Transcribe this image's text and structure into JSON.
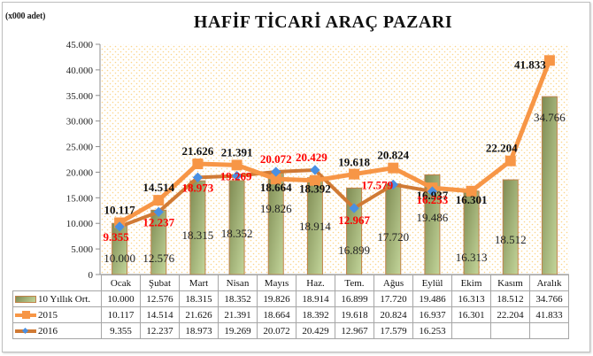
{
  "header": {
    "unit_label": "(x000 adet)",
    "title": "HAFİF TİCARİ ARAÇ PAZARI"
  },
  "colors": {
    "bar_dark": "#7f8b53",
    "bar_light": "#c3d69b",
    "bar_border": "#c0824a",
    "line_2015": "#f79646",
    "line_2016": "#d07a35",
    "marker_2016": "#4a90e2",
    "label_2016": "#ff0000",
    "plot_dots": "#fcd58a"
  },
  "table": {
    "headers": [
      "Ocak",
      "Şubat",
      "Mart",
      "Nisan",
      "Mayıs",
      "Haz.",
      "Tem.",
      "Ağus",
      "Eylül",
      "Ekim",
      "Kasım",
      "Aralık"
    ],
    "rows": [
      {
        "label": "10 Yıllık Ort.",
        "values": [
          "10.000",
          "12.576",
          "18.315",
          "18.352",
          "19.826",
          "18.914",
          "16.899",
          "17.720",
          "19.486",
          "16.313",
          "18.512",
          "34.766"
        ]
      },
      {
        "label": "2015",
        "values": [
          "10.117",
          "14.514",
          "21.626",
          "21.391",
          "18.664",
          "18.392",
          "19.618",
          "20.824",
          "16.937",
          "16.301",
          "22.204",
          "41.833"
        ]
      },
      {
        "label": "2016",
        "values": [
          "9.355",
          "12.237",
          "18.973",
          "19.269",
          "20.072",
          "20.429",
          "12.967",
          "17.579",
          "16.253",
          "",
          "",
          ""
        ]
      }
    ]
  },
  "chart_data": {
    "type": "bar",
    "title": "HAFİF TİCARİ ARAÇ PAZARI",
    "ylabel": "(x000 adet)",
    "xlabel": "",
    "ylim": [
      0,
      45000
    ],
    "yticks": [
      0,
      5000,
      10000,
      15000,
      20000,
      25000,
      30000,
      35000,
      40000,
      45000
    ],
    "ytick_labels": [
      "0",
      "5.000",
      "10.000",
      "15.000",
      "20.000",
      "25.000",
      "30.000",
      "35.000",
      "40.000",
      "45.000"
    ],
    "grid": false,
    "legend_position": "data-table-bottom",
    "categories": [
      "Ocak",
      "Şubat",
      "Mart",
      "Nisan",
      "Mayıs",
      "Haz.",
      "Tem.",
      "Ağus",
      "Eylül",
      "Ekim",
      "Kasım",
      "Aralık"
    ],
    "series": [
      {
        "name": "10 Yıllık Ort.",
        "type": "bar",
        "values": [
          10000,
          12576,
          18315,
          18352,
          19826,
          18914,
          16899,
          17720,
          19486,
          16313,
          18512,
          34766
        ]
      },
      {
        "name": "2015",
        "type": "line",
        "marker": "square",
        "values": [
          10117,
          14514,
          21626,
          21391,
          18664,
          18392,
          19618,
          20824,
          16937,
          16301,
          22204,
          41833
        ]
      },
      {
        "name": "2016",
        "type": "line",
        "marker": "diamond",
        "values": [
          9355,
          12237,
          18973,
          19269,
          20072,
          20429,
          12967,
          17579,
          16253,
          null,
          null,
          null
        ]
      }
    ]
  }
}
